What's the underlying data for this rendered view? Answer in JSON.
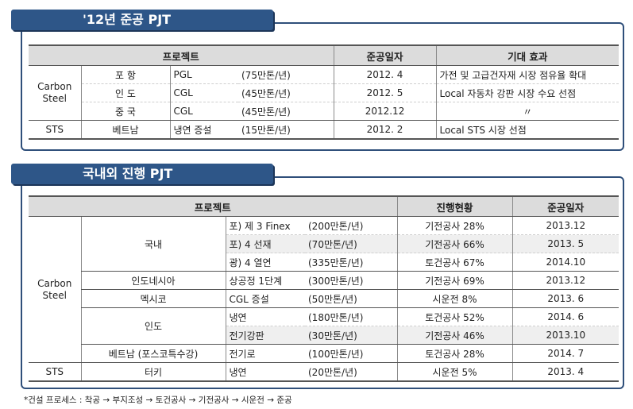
{
  "panel1": {
    "title": "'12년 준공 PJT",
    "headers": [
      "프로젝트",
      "준공일자",
      "기대 효과"
    ],
    "group_carbon": "Carbon Steel",
    "group_sts": "STS",
    "rows": [
      {
        "loc": "포 항",
        "plant": "PGL",
        "cap": "(75만톤/년)",
        "date": "2012. 4",
        "effect": "가전 및 고급건자재 시장 점유율 확대"
      },
      {
        "loc": "인 도",
        "plant": "CGL",
        "cap": "(45만톤/년)",
        "date": "2012. 5",
        "effect": "Local 자동차 강판 시장 수요 선점"
      },
      {
        "loc": "중 국",
        "plant": "CGL",
        "cap": "(45만톤/년)",
        "date": "2012.12",
        "effect": "〃"
      },
      {
        "loc": "베트남",
        "plant": "냉연 증설",
        "cap": "(15만톤/년)",
        "date": "2012. 2",
        "effect": "Local STS 시장 선점"
      }
    ]
  },
  "panel2": {
    "title": "국내외 진행 PJT",
    "headers": [
      "프로젝트",
      "진행현황",
      "준공일자"
    ],
    "group_carbon": "Carbon Steel",
    "group_sts": "STS",
    "regions": [
      "국내",
      "인도네시아",
      "멕시코",
      "인도",
      "베트남 (포스코특수강)",
      "터키"
    ],
    "rows": [
      {
        "plant": "포) 제 3 Finex",
        "cap": "(200만톤/년)",
        "status": "기전공사 28%",
        "date": "2013.12"
      },
      {
        "plant": "포) 4 선재",
        "cap": "(70만톤/년)",
        "status": "기전공사 66%",
        "date": "2013. 5"
      },
      {
        "plant": "광) 4 열연",
        "cap": "(335만톤/년)",
        "status": "토건공사 67%",
        "date": "2014.10"
      },
      {
        "plant": "상공정 1단계",
        "cap": "(300만톤/년)",
        "status": "기전공사 69%",
        "date": "2013.12"
      },
      {
        "plant": "CGL 증설",
        "cap": "(50만톤/년)",
        "status": "시운전 8%",
        "date": "2013. 6"
      },
      {
        "plant": "냉연",
        "cap": "(180만톤/년)",
        "status": "토건공사 52%",
        "date": "2014. 6"
      },
      {
        "plant": "전기강판",
        "cap": "(30만톤/년)",
        "status": "기전공사 46%",
        "date": "2013.10"
      },
      {
        "plant": "전기로",
        "cap": "(100만톤/년)",
        "status": "토건공사 28%",
        "date": "2014. 7"
      },
      {
        "plant": "냉연",
        "cap": "(20만톤/년)",
        "status": "시운전 5%",
        "date": "2013. 4"
      }
    ]
  },
  "footnote": "*건설 프로세스 : 착공 → 부지조성 → 토건공사 → 기전공사 → 시운전 → 준공"
}
